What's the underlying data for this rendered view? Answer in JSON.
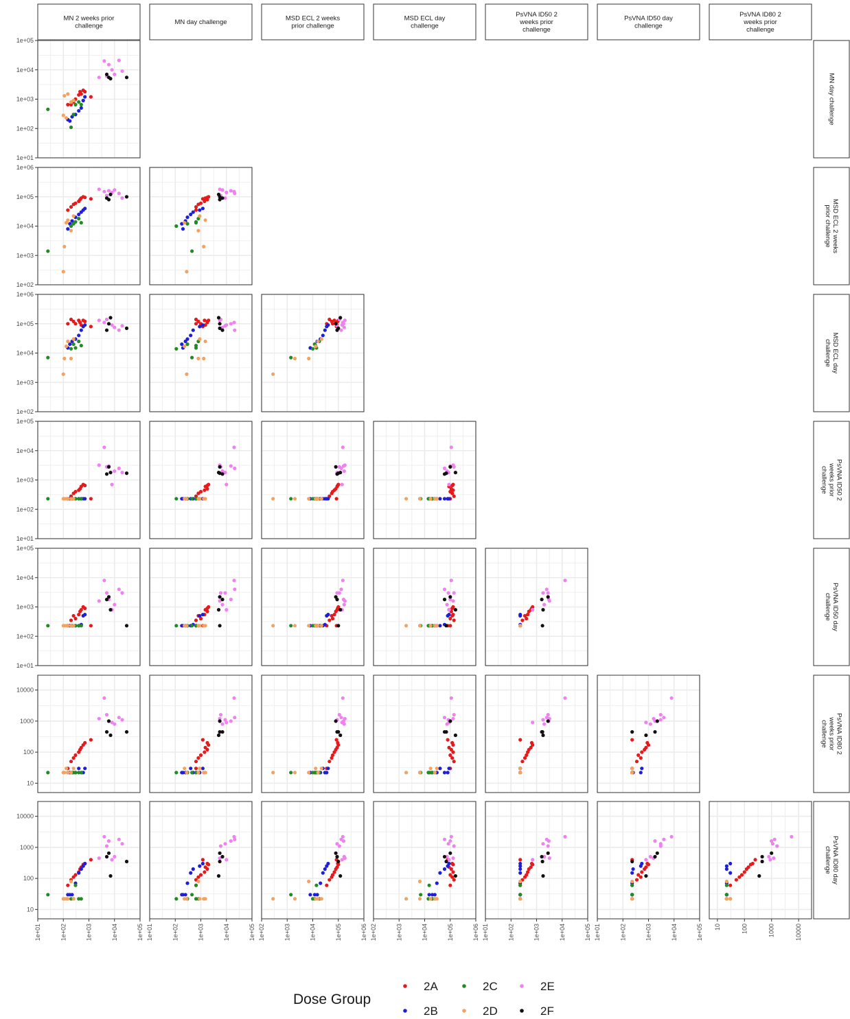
{
  "chart_data": {
    "type": "scatter",
    "variables": [
      "MN 2 weeks prior challenge",
      "MN day challenge",
      "MSD ECL 2 weeks prior challenge",
      "MSD ECL day challenge",
      "PsVNA ID50 2 weeks prior challenge",
      "PsVNA ID50 day challenge",
      "PsVNA ID80 2 weeks prior challenge",
      "PsVNA ID80 day challenge"
    ],
    "column_strip_labels": [
      [
        "MN 2 weeks prior",
        "challenge"
      ],
      [
        "MN day challenge"
      ],
      [
        "MSD ECL 2 weeks",
        "prior challenge"
      ],
      [
        "MSD ECL day",
        "challenge"
      ],
      [
        "PsVNA ID50 2",
        "weeks prior",
        "challenge"
      ],
      [
        "PsVNA ID50 day",
        "challenge"
      ],
      [
        "PsVNA ID80 2",
        "weeks prior",
        "challenge"
      ]
    ],
    "row_strip_labels": [
      [
        "MN day challenge"
      ],
      [
        "MSD ECL 2 weeks",
        "prior challenge"
      ],
      [
        "MSD ECL day",
        "challenge"
      ],
      [
        "PsVNA ID50 2",
        "weeks prior",
        "challenge"
      ],
      [
        "PsVNA ID50 day",
        "challenge"
      ],
      [
        "PsVNA ID80 2",
        "weeks prior",
        "challenge"
      ],
      [
        "PsVNA ID80 day",
        "challenge"
      ]
    ],
    "scale": "log10",
    "axis_ranges": {
      "MN 2 weeks prior challenge": [
        10,
        100000
      ],
      "MN day challenge": [
        10,
        100000
      ],
      "MSD ECL 2 weeks prior challenge": [
        100,
        1000000
      ],
      "MSD ECL day challenge": [
        100,
        1000000
      ],
      "PsVNA ID50 2 weeks prior challenge": [
        10,
        100000
      ],
      "PsVNA ID50 day challenge": [
        10,
        100000
      ],
      "PsVNA ID80 2 weeks prior challenge": [
        5,
        30000
      ],
      "PsVNA ID80 day challenge": [
        5,
        30000
      ]
    },
    "x_tick_labels": [
      [
        "1e+01",
        "1e+02",
        "1e+03",
        "1e+04",
        "1e+05"
      ],
      [
        "1e+01",
        "1e+02",
        "1e+03",
        "1e+04",
        "1e+05"
      ],
      [
        "1e+02",
        "1e+03",
        "1e+04",
        "1e+05",
        "1e+06"
      ],
      [
        "1e+02",
        "1e+03",
        "1e+04",
        "1e+05",
        "1e+06"
      ],
      [
        "1e+01",
        "1e+02",
        "1e+03",
        "1e+04",
        "1e+05"
      ],
      [
        "1e+01",
        "1e+02",
        "1e+03",
        "1e+04",
        "1e+05"
      ],
      [
        "10",
        "100",
        "1000",
        "10000"
      ]
    ],
    "y_tick_labels": [
      [
        "1e+01",
        "1e+02",
        "1e+03",
        "1e+04",
        "1e+05"
      ],
      [
        "1e+02",
        "1e+03",
        "1e+04",
        "1e+05",
        "1e+06"
      ],
      [
        "1e+02",
        "1e+03",
        "1e+04",
        "1e+05",
        "1e+06"
      ],
      [
        "1e+01",
        "1e+02",
        "1e+03",
        "1e+04",
        "1e+05"
      ],
      [
        "1e+01",
        "1e+02",
        "1e+03",
        "1e+04",
        "1e+05"
      ],
      [
        "10",
        "100",
        "1000",
        "10000"
      ],
      [
        "10",
        "100",
        "1000",
        "10000"
      ]
    ],
    "grid": true,
    "legend": {
      "title": "Dose Group",
      "placement": "bottom",
      "groups": [
        "2A",
        "2B",
        "2C",
        "2D",
        "2E",
        "2F"
      ],
      "colors": {
        "2A": "#e41a1c",
        "2B": "#1f1fd8",
        "2C": "#238b23",
        "2D": "#f4a261",
        "2E": "#ee82ee",
        "2F": "#111111"
      }
    },
    "subjects": [
      {
        "group": "2A",
        "values": [
          150,
          650,
          35000,
          100000,
          230,
          230,
          30,
          60
        ]
      },
      {
        "group": "2A",
        "values": [
          200,
          650,
          45000,
          140000,
          280,
          350,
          50,
          90
        ]
      },
      {
        "group": "2A",
        "values": [
          250,
          800,
          55000,
          120000,
          350,
          500,
          65,
          110
        ]
      },
      {
        "group": "2A",
        "values": [
          300,
          1000,
          60000,
          100000,
          400,
          400,
          80,
          130
        ]
      },
      {
        "group": "2A",
        "values": [
          400,
          1400,
          70000,
          130000,
          450,
          550,
          100,
          160
        ]
      },
      {
        "group": "2A",
        "values": [
          450,
          1800,
          80000,
          110000,
          500,
          700,
          120,
          200
        ]
      },
      {
        "group": "2A",
        "values": [
          500,
          1500,
          90000,
          90000,
          600,
          800,
          140,
          230
        ]
      },
      {
        "group": "2A",
        "values": [
          600,
          2000,
          100000,
          130000,
          700,
          1000,
          170,
          280
        ]
      },
      {
        "group": "2A",
        "values": [
          700,
          1800,
          95000,
          120000,
          650,
          900,
          200,
          300
        ]
      },
      {
        "group": "2A",
        "values": [
          1200,
          1200,
          85000,
          80000,
          230,
          230,
          250,
          400
        ]
      },
      {
        "group": "2B",
        "values": [
          150,
          200,
          8000,
          15000,
          230,
          230,
          22,
          30
        ]
      },
      {
        "group": "2B",
        "values": [
          180,
          180,
          12000,
          20000,
          230,
          230,
          22,
          30
        ]
      },
      {
        "group": "2B",
        "values": [
          220,
          250,
          15000,
          25000,
          230,
          230,
          22,
          30
        ]
      },
      {
        "group": "2B",
        "values": [
          300,
          300,
          20000,
          30000,
          230,
          230,
          22,
          70
        ]
      },
      {
        "group": "2B",
        "values": [
          400,
          400,
          25000,
          40000,
          230,
          230,
          30,
          150
        ]
      },
      {
        "group": "2B",
        "values": [
          500,
          500,
          30000,
          60000,
          230,
          250,
          22,
          200
        ]
      },
      {
        "group": "2B",
        "values": [
          600,
          900,
          35000,
          80000,
          230,
          500,
          22,
          250
        ]
      },
      {
        "group": "2B",
        "values": [
          700,
          1200,
          40000,
          90000,
          230,
          550,
          30,
          300
        ]
      },
      {
        "group": "2C",
        "values": [
          25,
          450,
          1400,
          7000,
          230,
          230,
          22,
          30
        ]
      },
      {
        "group": "2C",
        "values": [
          200,
          110,
          10000,
          14000,
          230,
          230,
          22,
          22
        ]
      },
      {
        "group": "2C",
        "values": [
          250,
          300,
          12000,
          20000,
          230,
          230,
          22,
          22
        ]
      },
      {
        "group": "2C",
        "values": [
          300,
          650,
          14000,
          15000,
          230,
          230,
          22,
          60
        ]
      },
      {
        "group": "2C",
        "values": [
          400,
          800,
          18000,
          25000,
          230,
          230,
          22,
          22
        ]
      },
      {
        "group": "2C",
        "values": [
          500,
          650,
          13000,
          18000,
          230,
          230,
          22,
          22
        ]
      },
      {
        "group": "2D",
        "values": [
          100,
          280,
          280,
          1900,
          230,
          230,
          22,
          22
        ]
      },
      {
        "group": "2D",
        "values": [
          110,
          1300,
          2000,
          6500,
          230,
          230,
          22,
          22
        ]
      },
      {
        "group": "2D",
        "values": [
          130,
          230,
          13000,
          17000,
          230,
          230,
          30,
          22
        ]
      },
      {
        "group": "2D",
        "values": [
          150,
          1500,
          16000,
          25000,
          230,
          230,
          22,
          22
        ]
      },
      {
        "group": "2D",
        "values": [
          200,
          800,
          7000,
          6500,
          230,
          230,
          22,
          80
        ]
      },
      {
        "group": "2D",
        "values": [
          250,
          900,
          22000,
          30000,
          230,
          230,
          30,
          22
        ]
      },
      {
        "group": "2E",
        "values": [
          2500,
          5500,
          180000,
          130000,
          3200,
          1600,
          1200,
          450
        ]
      },
      {
        "group": "2E",
        "values": [
          4000,
          20000,
          150000,
          110000,
          13000,
          8000,
          5500,
          2200
        ]
      },
      {
        "group": "2E",
        "values": [
          5000,
          6000,
          110000,
          140000,
          2800,
          3000,
          1600,
          1100
        ]
      },
      {
        "group": "2E",
        "values": [
          6000,
          15000,
          160000,
          100000,
          3000,
          1800,
          1000,
          1600
        ]
      },
      {
        "group": "2E",
        "values": [
          8000,
          10000,
          140000,
          90000,
          700,
          800,
          900,
          400
        ]
      },
      {
        "group": "2E",
        "values": [
          10000,
          7000,
          170000,
          75000,
          2000,
          1200,
          800,
          500
        ]
      },
      {
        "group": "2E",
        "values": [
          15000,
          21000,
          130000,
          60000,
          2500,
          4000,
          1300,
          1800
        ]
      },
      {
        "group": "2E",
        "values": [
          20000,
          9000,
          90000,
          85000,
          1800,
          3000,
          1100,
          1300
        ]
      },
      {
        "group": "2F",
        "values": [
          5000,
          7000,
          90000,
          60000,
          1600,
          1800,
          450,
          500
        ]
      },
      {
        "group": "2F",
        "values": [
          6000,
          5500,
          80000,
          100000,
          2800,
          2200,
          1000,
          650
        ]
      },
      {
        "group": "2F",
        "values": [
          7000,
          5000,
          120000,
          160000,
          1800,
          800,
          350,
          120
        ]
      },
      {
        "group": "2F",
        "values": [
          30000,
          5500,
          100000,
          70000,
          1700,
          230,
          450,
          350
        ]
      }
    ]
  }
}
